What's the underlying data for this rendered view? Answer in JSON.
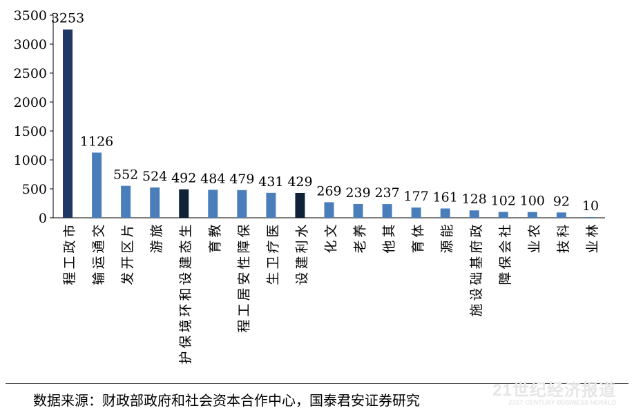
{
  "chart_data": {
    "type": "bar",
    "categories": [
      "市政工程",
      "交通运输",
      "片区开发",
      "旅游",
      "生态建设和环境保护",
      "教育",
      "保障性安居工程",
      "医疗卫生",
      "水利建设",
      "文化",
      "养老",
      "其他",
      "体育",
      "能源",
      "政府基础设施",
      "社会保障",
      "农业",
      "科技",
      "林业"
    ],
    "values": [
      3253,
      1126,
      552,
      524,
      492,
      484,
      479,
      431,
      429,
      269,
      239,
      237,
      177,
      161,
      128,
      102,
      100,
      92,
      10
    ],
    "bar_colors": [
      "#1f3864",
      "#4a7ebb",
      "#4a7ebb",
      "#4a7ebb",
      "#0f2238",
      "#4a7ebb",
      "#4a7ebb",
      "#4a7ebb",
      "#0f2238",
      "#4a7ebb",
      "#4a7ebb",
      "#4a7ebb",
      "#4a7ebb",
      "#4a7ebb",
      "#4a7ebb",
      "#4a7ebb",
      "#4a7ebb",
      "#4a7ebb",
      "#4a7ebb"
    ],
    "data_labels": [
      "3253",
      "1126",
      "552",
      "524",
      "492",
      "484",
      "479",
      "431",
      "429",
      "269",
      "239",
      "237",
      "177",
      "161",
      "128",
      "102",
      "100",
      "92",
      "10"
    ],
    "yticks": [
      0,
      500,
      1000,
      1500,
      2000,
      2500,
      3000,
      3500
    ],
    "ylim": [
      0,
      3500
    ],
    "title": "",
    "xlabel": "",
    "ylabel": "",
    "grid": false,
    "legend": "none"
  },
  "source": "数据来源：财政部政府和社会资本合作中心，国泰君安证券研究",
  "watermark": {
    "main": "21世纪经济报道",
    "sub": "21ST CENTURY BUSINESS HERALD"
  }
}
